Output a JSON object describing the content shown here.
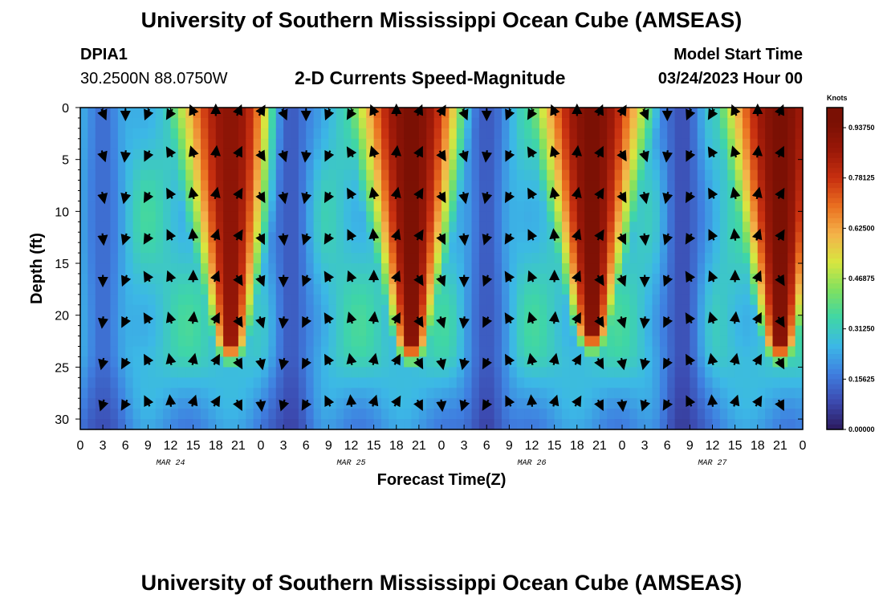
{
  "header": {
    "title": "University of Southern Mississippi Ocean Cube (AMSEAS)",
    "station": "DPIA1",
    "coords": "30.2500N  88.0750W",
    "plot_title": "2-D Currents Speed-Magnitude",
    "model_label": "Model Start Time",
    "model_time": "03/24/2023 Hour 00"
  },
  "footer": {
    "title": "University of Southern Mississippi Ocean Cube (AMSEAS)"
  },
  "colors": {
    "ramp": [
      "#2b1a5e",
      "#3c4ab0",
      "#3f7fe0",
      "#3cb8e6",
      "#3fd6a6",
      "#7fe060",
      "#d8e640",
      "#f4b24a",
      "#ea7020",
      "#c83010",
      "#9a1808",
      "#7a1004"
    ]
  },
  "chart_data": {
    "type": "heatmap",
    "title": "2-D Currents Speed-Magnitude",
    "xlabel": "Forecast Time(Z)",
    "ylabel": "Depth (ft)",
    "xlim": [
      0,
      96
    ],
    "ylim": [
      0,
      31
    ],
    "x_tick_labels": [
      "0",
      "3",
      "6",
      "9",
      "12",
      "15",
      "18",
      "21",
      "0",
      "3",
      "6",
      "9",
      "12",
      "15",
      "18",
      "21",
      "0",
      "3",
      "6",
      "9",
      "12",
      "15",
      "18",
      "21",
      "0",
      "3",
      "6",
      "9",
      "12",
      "15",
      "18",
      "21",
      "0"
    ],
    "y_ticks": [
      0,
      5,
      10,
      15,
      20,
      25,
      30
    ],
    "y_tick_labels": [
      "0",
      "5",
      "10",
      "15",
      "20",
      "25",
      "30"
    ],
    "date_labels": [
      {
        "label": "MAR 24",
        "hour": 12
      },
      {
        "label": "MAR 25",
        "hour": 36
      },
      {
        "label": "MAR 26",
        "hour": 60
      },
      {
        "label": "MAR 27",
        "hour": 84
      }
    ],
    "colorbar": {
      "label": "Knots",
      "min": 0,
      "max": 1.0,
      "ticks": [
        0.0,
        0.15625,
        0.3125,
        0.46875,
        0.625,
        0.78125,
        0.9375
      ],
      "tick_labels": [
        "0.00000",
        "0.15625",
        "0.31250",
        "0.46875",
        "0.62500",
        "0.78125",
        "0.93750"
      ]
    },
    "vector_depths_ft": [
      0,
      4,
      8,
      12,
      16,
      20,
      24,
      28
    ],
    "vector_spacing_hours": 3,
    "speed_peaks_knots": [
      {
        "hour": 20,
        "depth_max_ft": 22,
        "peak": 0.95
      },
      {
        "hour": 44,
        "depth_max_ft": 22,
        "peak": 1.0
      },
      {
        "hour": 68,
        "depth_max_ft": 21,
        "peak": 1.0
      },
      {
        "hour": 93,
        "depth_max_ft": 22,
        "peak": 1.0
      }
    ],
    "minima": [
      {
        "hour": 3,
        "speed": 0.15
      },
      {
        "hour": 28,
        "speed": 0.12
      },
      {
        "hour": 54,
        "speed": 0.12
      },
      {
        "hour": 80,
        "speed": 0.1
      }
    ]
  }
}
